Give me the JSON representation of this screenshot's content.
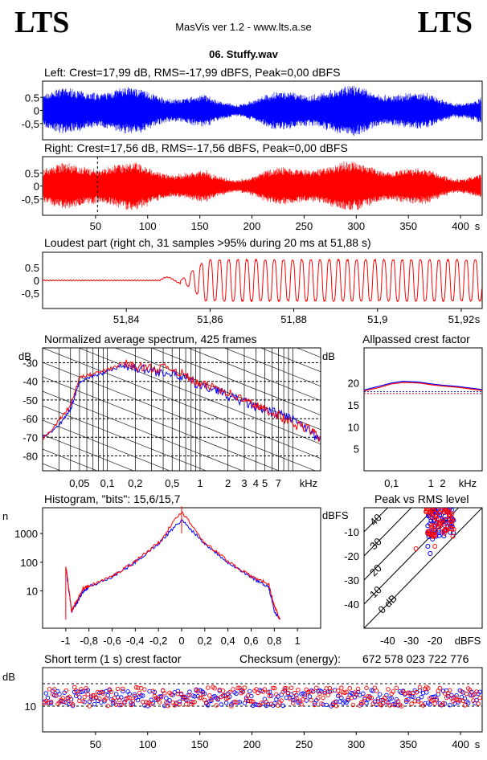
{
  "header": {
    "logo_left": "LTS",
    "logo_right": "LTS",
    "app_title": "MasVis ver 1.2 - www.lts.a.se",
    "file_name": "06. Stuffy.wav"
  },
  "colors": {
    "left": "#0000ff",
    "right": "#ff0000",
    "grid": "#000000"
  },
  "panels": {
    "left": {
      "title": "Left: Crest=17,99 dB, RMS=-17,99 dBFS, Peak=0,00 dBFS",
      "yticks": [
        "0.5",
        "0",
        "-0,5"
      ]
    },
    "right": {
      "title": "Right: Crest=17,56 dB, RMS=-17,56 dBFS, Peak=0,00 dBFS",
      "yticks": [
        "0.5",
        "0",
        "-0,5"
      ],
      "xticks": [
        "50",
        "100",
        "150",
        "200",
        "250",
        "300",
        "350",
        "400",
        "s"
      ]
    },
    "loudest": {
      "title": "Loudest part (right ch, 31 samples >95% during 20 ms at 51,88 s)",
      "yticks": [
        "0.5",
        "0",
        "-0,5"
      ],
      "xticks": [
        "51,84",
        "51,86",
        "51,88",
        "51,9",
        "51,92",
        "s"
      ]
    },
    "spectrum": {
      "title": "Normalized average spectrum, 425 frames",
      "unit": "dB",
      "yticks": [
        "-30",
        "-40",
        "-50",
        "-60",
        "-70",
        "-80"
      ],
      "xticks": [
        "0,05",
        "0,1",
        "0,2",
        "0,5",
        "1",
        "2",
        "3",
        "4",
        "5",
        "7",
        "kHz"
      ]
    },
    "allpass": {
      "title": "Allpassed crest factor",
      "unit": "dB",
      "yticks": [
        "20",
        "15",
        "10",
        "5"
      ],
      "xticks": [
        "0,1",
        "1",
        "2",
        "kHz"
      ]
    },
    "histogram": {
      "title": "Histogram, \"bits\": 15,6/15,7",
      "unit": "n",
      "yticks": [
        "1000",
        "100",
        "10"
      ],
      "xticks": [
        "-1",
        "-0,8",
        "-0,6",
        "-0,4",
        "-0,2",
        "0",
        "0,2",
        "0,4",
        "0,6",
        "0,8",
        "1"
      ]
    },
    "peakrms": {
      "title": "Peak vs RMS level",
      "unit": "dBFS",
      "yticks": [
        "-10",
        "-20",
        "-30",
        "-40"
      ],
      "xticks": [
        "-40",
        "-30",
        "-20",
        "dBFS"
      ],
      "diag_labels": [
        "40",
        "30",
        "20",
        "10",
        "0 dB"
      ]
    },
    "crest": {
      "title": "Short term (1 s) crest factor",
      "unit": "dB",
      "yticks": [
        "10"
      ],
      "xticks": [
        "50",
        "100",
        "150",
        "200",
        "250",
        "300",
        "350",
        "400",
        "s"
      ],
      "checksum_label": "Checksum (energy):",
      "checksum_value": "672 578 023 722 776"
    }
  },
  "chart_data": [
    {
      "type": "area",
      "title": "Left: Crest=17,99 dB, RMS=-17,99 dBFS, Peak=0,00 dBFS",
      "x_range": [
        0,
        420
      ],
      "ylim": [
        -1,
        1
      ],
      "series": [
        {
          "name": "Left",
          "color": "#0000ff"
        }
      ]
    },
    {
      "type": "area",
      "title": "Right: Crest=17,56 dB, RMS=-17,56 dBFS, Peak=0,00 dBFS",
      "x_range": [
        0,
        420
      ],
      "ylim": [
        -1,
        1
      ],
      "series": [
        {
          "name": "Right",
          "color": "#ff0000"
        }
      ],
      "marker_x": 51.88
    },
    {
      "type": "line",
      "title": "Loudest part (right ch, 31 samples >95% during 20 ms at 51,88 s)",
      "x_range": [
        51.82,
        51.925
      ],
      "ylim": [
        -1,
        1
      ],
      "waveform": {
        "quiet_until": 51.853,
        "cycles": 33,
        "amp": 0.9
      }
    },
    {
      "type": "line",
      "title": "Normalized average spectrum, 425 frames",
      "x": [
        0.02,
        0.03,
        0.04,
        0.05,
        0.07,
        0.1,
        0.15,
        0.2,
        0.3,
        0.5,
        0.7,
        1,
        1.5,
        2,
        3,
        4,
        5,
        7,
        10,
        16,
        20
      ],
      "series": [
        {
          "name": "Left",
          "values": [
            -70,
            -64,
            -55,
            -40,
            -37,
            -35,
            -31,
            -33,
            -34,
            -36,
            -38,
            -43,
            -44,
            -48,
            -51,
            -54,
            -56,
            -57,
            -60,
            -68,
            -73
          ]
        },
        {
          "name": "Right",
          "values": [
            -71,
            -61,
            -53,
            -38,
            -36,
            -34,
            -30,
            -32,
            -33,
            -33,
            -37,
            -42,
            -43,
            -46,
            -50,
            -53,
            -55,
            -58,
            -63,
            -66,
            -72
          ]
        }
      ]
    },
    {
      "type": "line",
      "title": "Allpassed crest factor",
      "x": [
        0.02,
        0.05,
        0.1,
        0.2,
        0.5,
        1,
        2,
        5,
        20
      ],
      "series": [
        {
          "name": "Left",
          "values": [
            18.4,
            19.3,
            20.0,
            20.4,
            20.2,
            19.8,
            19.5,
            19.2,
            18.5
          ]
        },
        {
          "name": "Right",
          "values": [
            18.2,
            19.0,
            19.8,
            20.1,
            20.0,
            19.6,
            19.3,
            19.0,
            18.3
          ]
        }
      ],
      "reference": {
        "Left": 18.0,
        "Right": 17.6
      }
    },
    {
      "type": "line",
      "title": "Histogram, \"bits\": 15,6/15,7",
      "x": [
        -1,
        -0.95,
        -0.9,
        -0.85,
        -0.8,
        -0.6,
        -0.4,
        -0.2,
        0,
        0.2,
        0.4,
        0.6,
        0.75,
        0.8,
        0.85
      ],
      "series": [
        {
          "name": "Left",
          "values": [
            70,
            2,
            4,
            10,
            14,
            30,
            100,
            450,
            3000,
            450,
            100,
            30,
            14,
            2,
            1
          ]
        },
        {
          "name": "Right",
          "values": [
            80,
            2,
            5,
            12,
            15,
            32,
            110,
            480,
            6000,
            480,
            110,
            32,
            18,
            3,
            1
          ]
        }
      ]
    },
    {
      "type": "scatter",
      "title": "Peak vs RMS level",
      "series": [
        {
          "name": "Left",
          "points": [
            [
              -22,
              -4
            ],
            [
              -21,
              -3
            ],
            [
              -20,
              -2
            ],
            [
              -19,
              -1
            ],
            [
              -18,
              -3
            ],
            [
              -17,
              -1
            ],
            [
              -16,
              -2
            ],
            [
              -15,
              -1
            ],
            [
              -14,
              -1
            ],
            [
              -21,
              -13
            ],
            [
              -23,
              -16
            ],
            [
              -22,
              -19
            ]
          ]
        },
        {
          "name": "Right",
          "points": [
            [
              -22,
              -3
            ],
            [
              -21,
              -1
            ],
            [
              -20,
              -2
            ],
            [
              -19,
              -1
            ],
            [
              -18,
              -2
            ],
            [
              -17,
              -1
            ],
            [
              -16,
              -1
            ],
            [
              -15,
              -1
            ],
            [
              -20,
              -16
            ],
            [
              -21,
              -11
            ],
            [
              -28,
              -17
            ],
            [
              -18,
              -2
            ]
          ]
        }
      ]
    },
    {
      "type": "scatter",
      "title": "Short term (1 s) crest factor",
      "x_range": [
        0,
        420
      ],
      "reference_lines": [
        10,
        17
      ],
      "series": [
        {
          "name": "Left",
          "mean": 12.5,
          "spread": 2.5
        },
        {
          "name": "Right",
          "mean": 13.0,
          "spread": 3.0
        }
      ]
    }
  ]
}
